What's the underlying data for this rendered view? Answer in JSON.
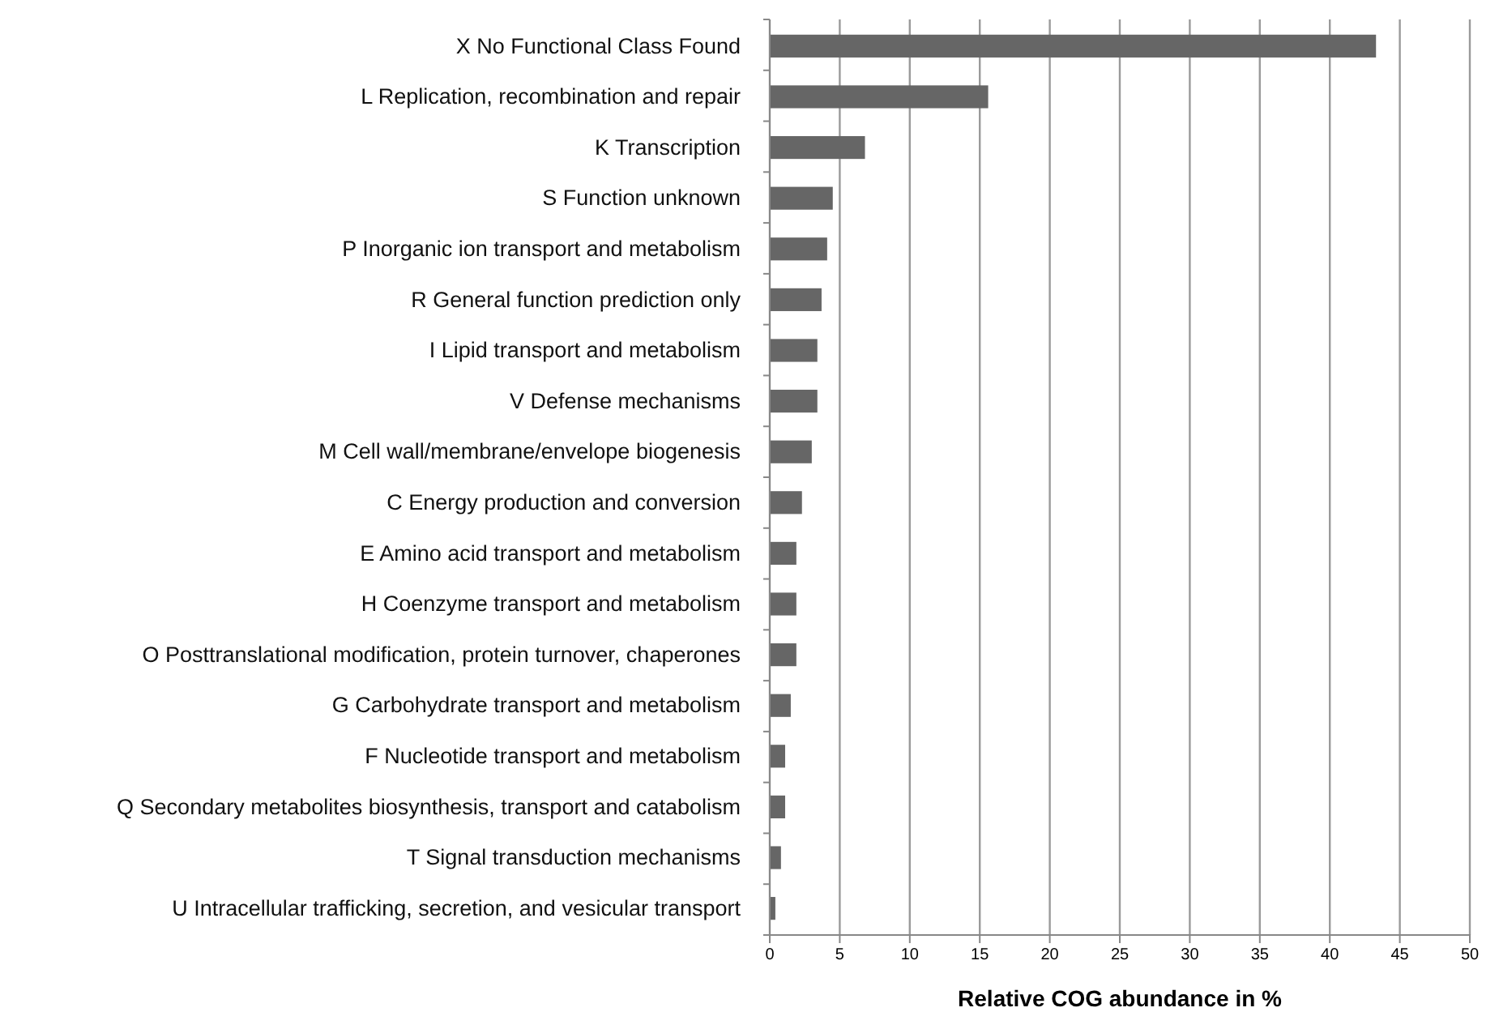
{
  "chart_data": {
    "type": "bar",
    "orientation": "horizontal",
    "xlabel": "Relative COG abundance in %",
    "categories": [
      "X No Functional Class Found",
      "L Replication, recombination and repair",
      "K Transcription",
      "S Function unknown",
      "P Inorganic ion transport and metabolism",
      "R General function prediction only",
      "I Lipid transport and metabolism",
      "V Defense mechanisms",
      "M Cell wall/membrane/envelope biogenesis",
      "C Energy production and conversion",
      "E Amino acid transport and metabolism",
      "H Coenzyme transport and metabolism",
      "O Posttranslational modification, protein turnover, chaperones",
      "G Carbohydrate transport and metabolism",
      "F Nucleotide transport and metabolism",
      "Q Secondary metabolites biosynthesis, transport and catabolism",
      "T Signal transduction mechanisms",
      "U Intracellular trafficking, secretion, and vesicular transport"
    ],
    "values": [
      43.3,
      15.6,
      6.8,
      4.5,
      4.1,
      3.7,
      3.4,
      3.4,
      3.0,
      2.3,
      1.9,
      1.9,
      1.9,
      1.5,
      1.1,
      1.1,
      0.8,
      0.4
    ],
    "color": "#666666",
    "xlim": [
      0,
      50
    ],
    "xticks": [
      0,
      5,
      10,
      15,
      20,
      25,
      30,
      35,
      40,
      45,
      50
    ],
    "grid": "x"
  }
}
